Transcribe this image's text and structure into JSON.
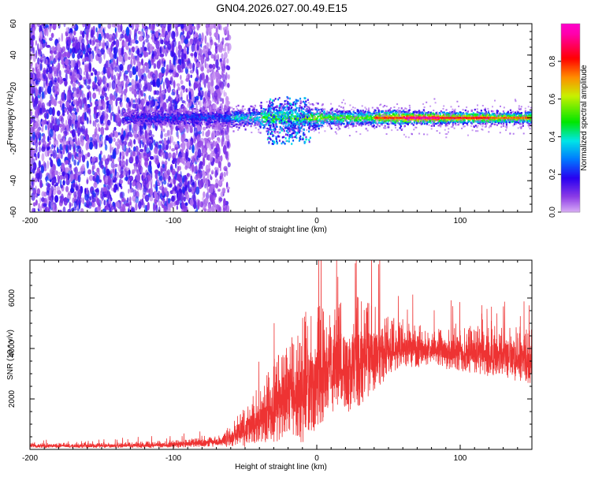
{
  "title": "GN04.2026.027.00.49.E15",
  "chart_data": [
    {
      "type": "heatmap",
      "xlabel": "Height of straight line (km)",
      "ylabel": "Frequency (Hz)",
      "xlim": [
        -200,
        150
      ],
      "ylim": [
        -60,
        60
      ],
      "xticks": [
        -200,
        -100,
        0,
        100
      ],
      "yticks": [
        -60,
        -40,
        -20,
        0,
        20,
        40,
        60
      ],
      "colorbar": {
        "label": "Normalized spectral amplitude",
        "range": [
          0,
          1
        ],
        "ticks": [
          "0.0",
          "0.2",
          "0.4",
          "0.6",
          "0.8"
        ]
      },
      "features": {
        "noise_region_x": [
          -200,
          -65
        ],
        "signal_track_freq_hz": 0,
        "peak_region_x": [
          40,
          150
        ]
      }
    },
    {
      "type": "line",
      "xlabel": "Height of straight line (km)",
      "ylabel": "SNR (10 * v/v)",
      "xlim": [
        -200,
        150
      ],
      "ylim": [
        0,
        7500
      ],
      "xticks": [
        -200,
        -100,
        0,
        100
      ],
      "yticks": [
        2000,
        4000,
        6000
      ],
      "color": "#ee3333",
      "envelope": {
        "x": [
          -200,
          -150,
          -100,
          -70,
          -60,
          -50,
          -40,
          -30,
          -20,
          -10,
          0,
          10,
          20,
          30,
          40,
          50,
          60,
          80,
          100,
          120,
          140,
          150
        ],
        "mean": [
          150,
          150,
          200,
          300,
          450,
          900,
          1300,
          1800,
          2200,
          2600,
          3000,
          3300,
          3500,
          3700,
          3800,
          4000,
          4050,
          4000,
          3900,
          3800,
          3700,
          3600
        ],
        "spread": [
          100,
          100,
          150,
          200,
          400,
          900,
          1200,
          1700,
          2000,
          2600,
          2500,
          2000,
          2300,
          2200,
          1800,
          1200,
          900,
          800,
          900,
          1000,
          1100,
          1100
        ]
      }
    }
  ]
}
